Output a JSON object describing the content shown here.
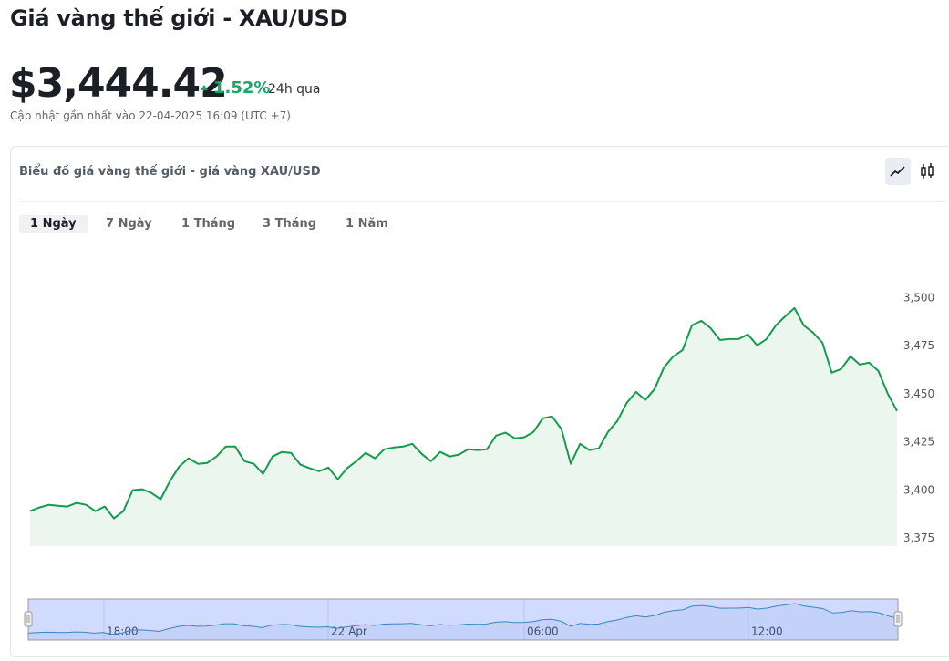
{
  "header": {
    "title": "Giá vàng thế giới - XAU/USD",
    "price": "$3,444.42",
    "change": "1.52%",
    "period": "24h qua",
    "updated": "Cập nhật gần nhất vào 22-04-2025 16:09 (UTC +7)"
  },
  "card": {
    "title": "Biểu đồ giá vàng thế giới - giá vàng XAU/USD",
    "tabs": [
      "1 Ngày",
      "7 Ngày",
      "1 Tháng",
      "3 Tháng",
      "1 Năm"
    ]
  },
  "chart_data": {
    "type": "line",
    "color": "#169b4c",
    "fill": "#eaf6ee",
    "values": [
      3389.2,
      3391.1,
      3392.5,
      3392.0,
      3391.6,
      3393.5,
      3392.5,
      3389.2,
      3391.6,
      3385.4,
      3389.2,
      3400.1,
      3400.6,
      3398.7,
      3395.4,
      3404.8,
      3412.4,
      3416.7,
      3413.8,
      3414.3,
      3417.6,
      3422.8,
      3422.8,
      3415.2,
      3413.8,
      3408.6,
      3417.6,
      3420.0,
      3419.5,
      3413.4,
      3411.5,
      3410.0,
      3411.9,
      3405.8,
      3411.5,
      3415.2,
      3419.5,
      3416.7,
      3421.4,
      3422.3,
      3422.8,
      3424.2,
      3419.0,
      3415.2,
      3420.0,
      3417.6,
      3418.6,
      3421.4,
      3421.0,
      3421.4,
      3428.5,
      3430.0,
      3427.1,
      3427.6,
      3430.4,
      3437.5,
      3438.5,
      3431.8,
      3413.8,
      3424.2,
      3421.0,
      3421.9,
      3430.4,
      3436.1,
      3445.5,
      3451.2,
      3447.0,
      3452.7,
      3464.0,
      3469.7,
      3473.0,
      3485.8,
      3488.2,
      3484.4,
      3478.2,
      3478.7,
      3478.7,
      3481.1,
      3475.4,
      3478.7,
      3485.8,
      3490.5,
      3494.8,
      3485.8,
      3482.0,
      3476.8,
      3461.2,
      3463.1,
      3469.7,
      3465.4,
      3466.4,
      3462.1,
      3450.3,
      3441.3
    ],
    "ylim": [
      3371,
      3508
    ],
    "yticks": [
      {
        "value": 3375,
        "label": "3,375"
      },
      {
        "value": 3400,
        "label": "3,400"
      },
      {
        "value": 3425,
        "label": "3,425"
      },
      {
        "value": 3450,
        "label": "3,450"
      },
      {
        "value": 3475,
        "label": "3,475"
      },
      {
        "value": 3500,
        "label": "3,500"
      }
    ],
    "grid": false,
    "navigator": {
      "labels": [
        "18:00",
        "22 Apr",
        "06:00",
        "12:00"
      ]
    }
  }
}
